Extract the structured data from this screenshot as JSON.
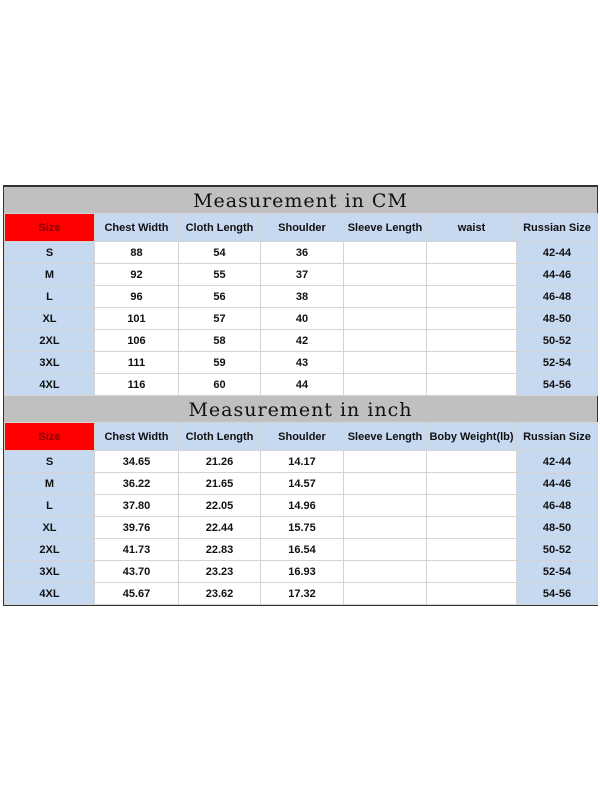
{
  "tables": [
    {
      "title": "Measurement in CM",
      "headers": [
        "Size",
        "Chest Width",
        "Cloth Length",
        "Shoulder",
        "Sleeve Length",
        "waist",
        "Russian Size"
      ],
      "rows": [
        [
          "S",
          "88",
          "54",
          "36",
          "",
          "",
          "42-44"
        ],
        [
          "M",
          "92",
          "55",
          "37",
          "",
          "",
          "44-46"
        ],
        [
          "L",
          "96",
          "56",
          "38",
          "",
          "",
          "46-48"
        ],
        [
          "XL",
          "101",
          "57",
          "40",
          "",
          "",
          "48-50"
        ],
        [
          "2XL",
          "106",
          "58",
          "42",
          "",
          "",
          "50-52"
        ],
        [
          "3XL",
          "111",
          "59",
          "43",
          "",
          "",
          "52-54"
        ],
        [
          "4XL",
          "116",
          "60",
          "44",
          "",
          "",
          "54-56"
        ]
      ]
    },
    {
      "title": "Measurement in inch",
      "headers": [
        "Size",
        "Chest Width",
        "Cloth Length",
        "Shoulder",
        "Sleeve Length",
        "Boby Weight(lb)",
        "Russian Size"
      ],
      "rows": [
        [
          "S",
          "34.65",
          "21.26",
          "14.17",
          "",
          "",
          "42-44"
        ],
        [
          "M",
          "36.22",
          "21.65",
          "14.57",
          "",
          "",
          "44-46"
        ],
        [
          "L",
          "37.80",
          "22.05",
          "14.96",
          "",
          "",
          "46-48"
        ],
        [
          "XL",
          "39.76",
          "22.44",
          "15.75",
          "",
          "",
          "48-50"
        ],
        [
          "2XL",
          "41.73",
          "22.83",
          "16.54",
          "",
          "",
          "50-52"
        ],
        [
          "3XL",
          "43.70",
          "23.23",
          "16.93",
          "",
          "",
          "52-54"
        ],
        [
          "4XL",
          "45.67",
          "23.62",
          "17.32",
          "",
          "",
          "54-56"
        ]
      ]
    }
  ],
  "colors": {
    "size_header": "#ff0000",
    "header_bg": "#c6d9f0",
    "title_bg": "#c0c0c0"
  }
}
